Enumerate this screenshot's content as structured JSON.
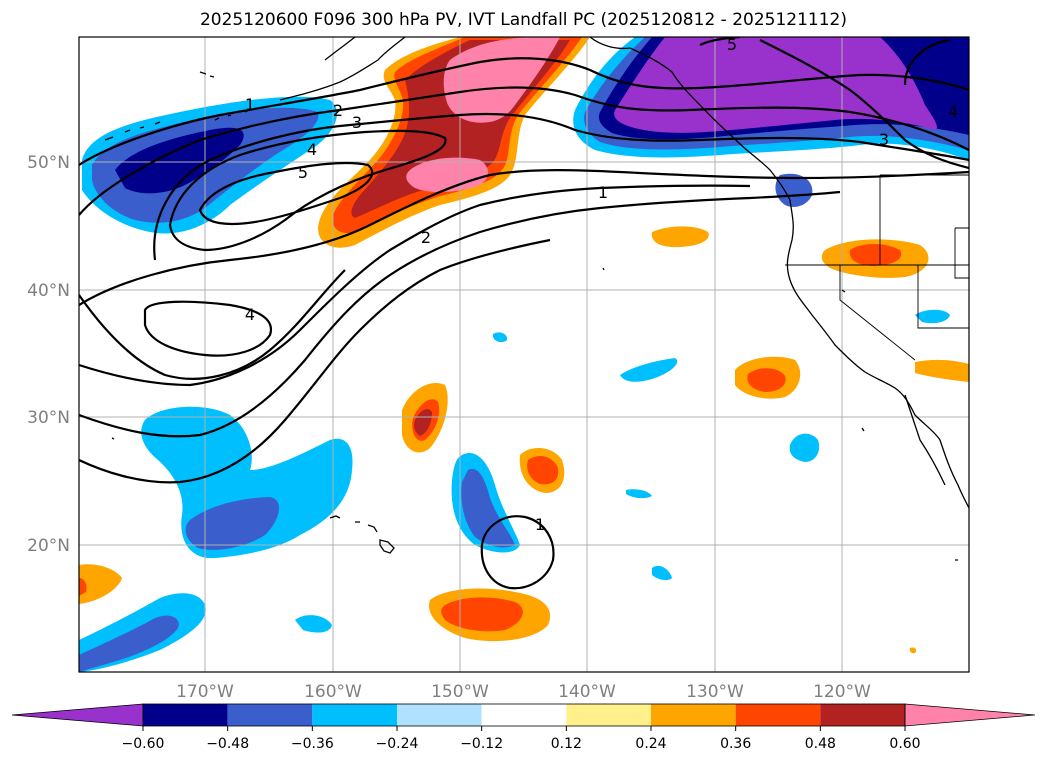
{
  "title": "2025120600 F096 300 hPa PV, IVT Landfall PC (2025120812 - 2025121112)",
  "map": {
    "lon_range": [
      -180,
      -110
    ],
    "lat_range": [
      10,
      60
    ],
    "lat_ticks": [
      "50°N",
      "40°N",
      "30°N",
      "20°N"
    ],
    "lon_ticks": [
      "170°W",
      "160°W",
      "150°W",
      "140°W",
      "130°W",
      "120°W"
    ],
    "grid": true
  },
  "colorbar": {
    "levels": [
      "-0.60",
      "-0.48",
      "-0.36",
      "-0.24",
      "-0.12",
      "0.12",
      "0.24",
      "0.36",
      "0.48",
      "0.60"
    ],
    "colors": [
      "#9932cc",
      "#00008b",
      "#3a5fcd",
      "#00bfff",
      "#b0e2ff",
      "#ffffff",
      "#fff08c",
      "#ffa500",
      "#ff4500",
      "#b22222",
      "#ff82ab"
    ],
    "extend": "both"
  },
  "pv_contour_labels": [
    "1",
    "2",
    "3",
    "4",
    "5",
    "1",
    "2",
    "4",
    "4",
    "5",
    "3",
    "1"
  ]
}
